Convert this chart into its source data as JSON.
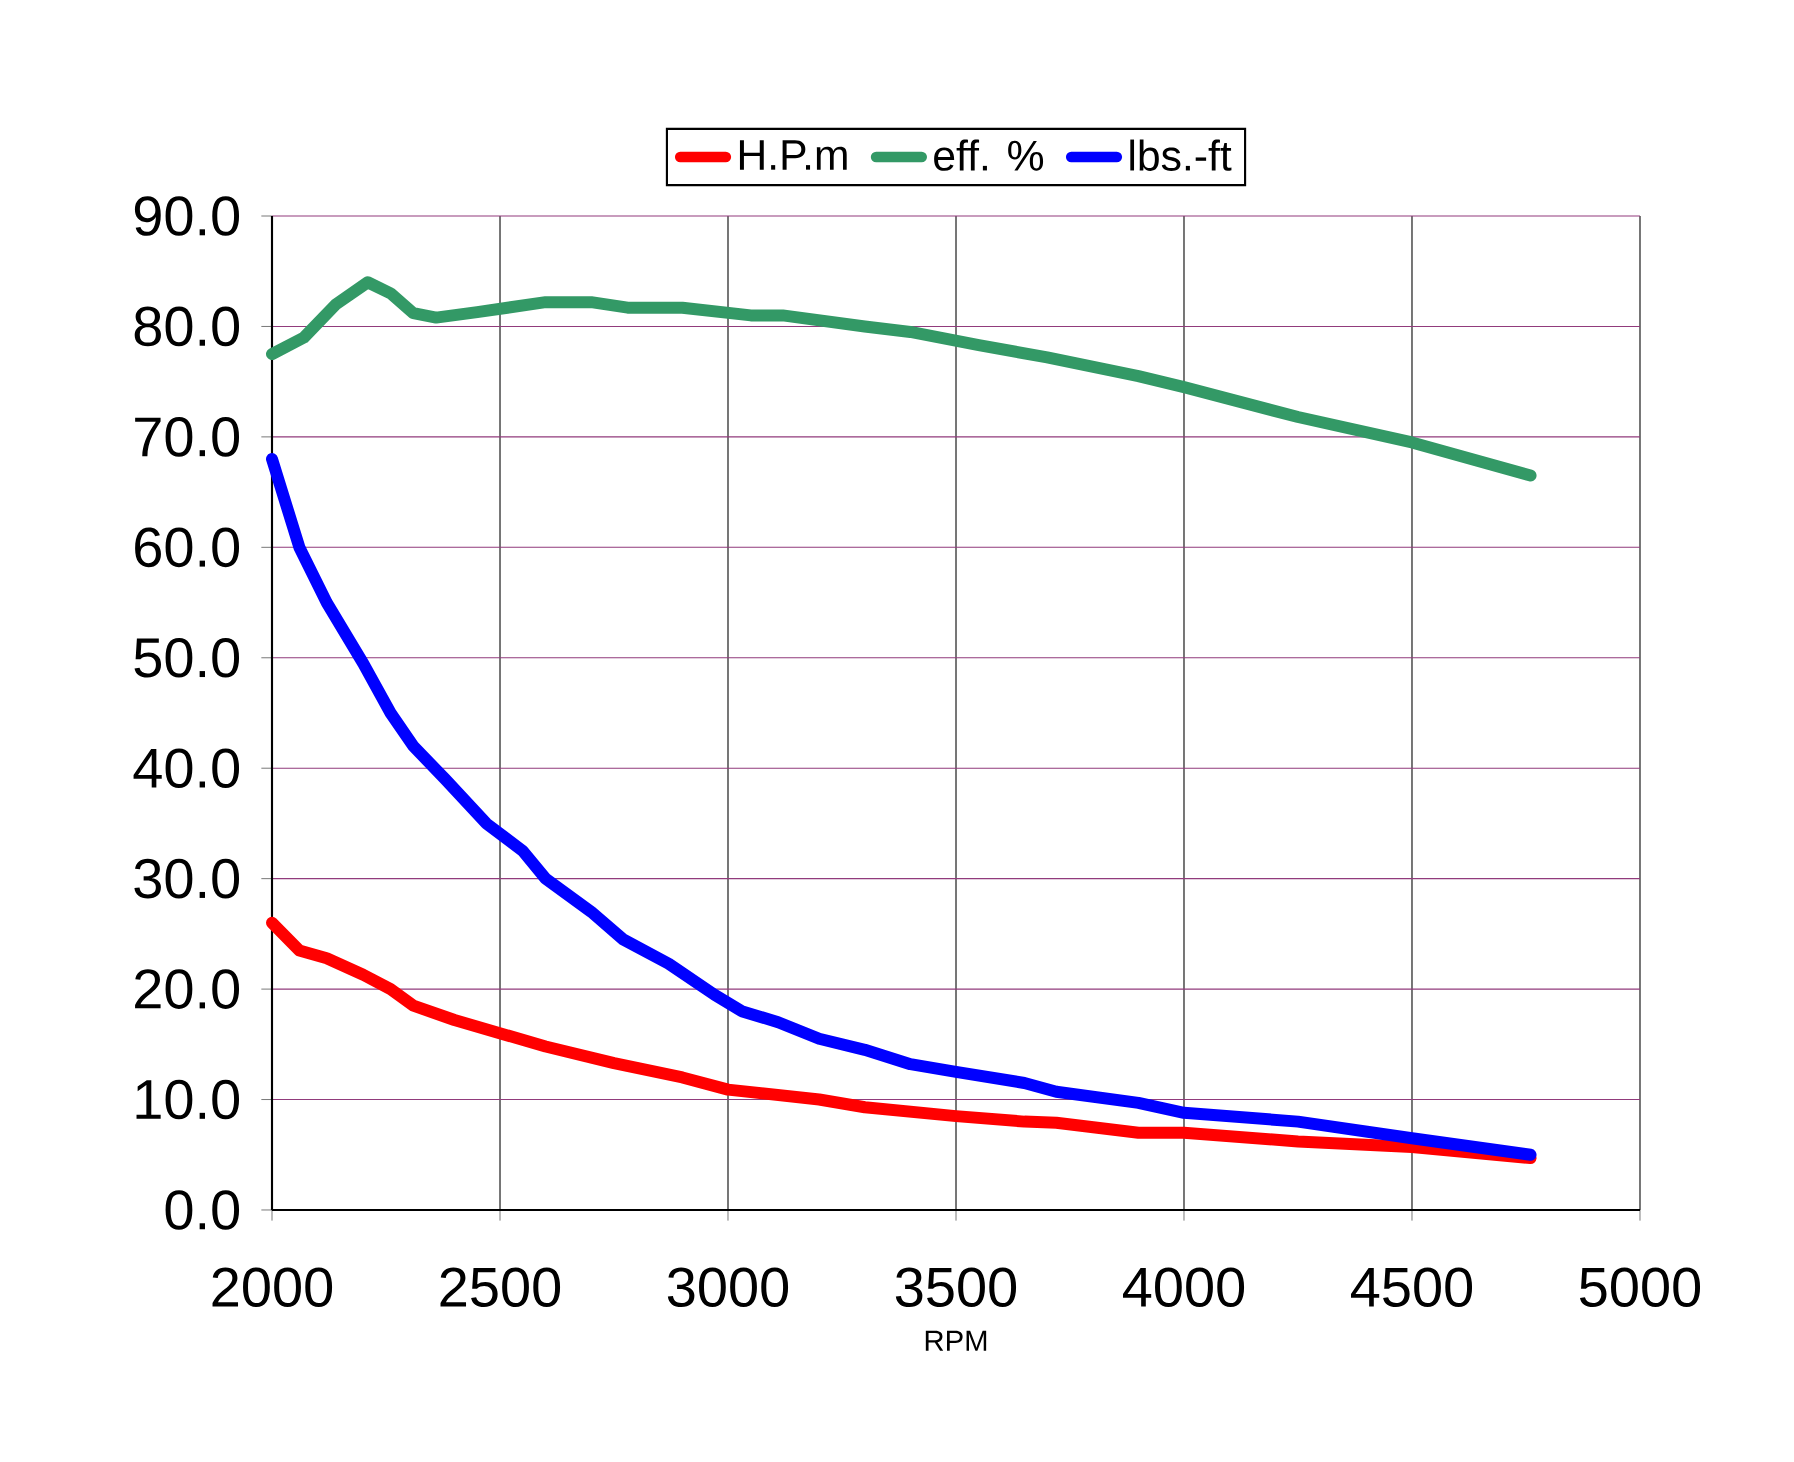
{
  "chart_data": {
    "type": "line",
    "xlabel": "RPM",
    "xlim": [
      2000,
      5000
    ],
    "xticks": [
      2000,
      2500,
      3000,
      3500,
      4000,
      4500,
      5000
    ],
    "ylim": [
      0,
      90
    ],
    "yticks": [
      {
        "value": 0,
        "label": "0.0"
      },
      {
        "value": 10,
        "label": "10.0"
      },
      {
        "value": 20,
        "label": "20.0"
      },
      {
        "value": 30,
        "label": "30.0"
      },
      {
        "value": 40,
        "label": "40.0"
      },
      {
        "value": 50,
        "label": "50.0"
      },
      {
        "value": 60,
        "label": "60.0"
      },
      {
        "value": 70,
        "label": "70.0"
      },
      {
        "value": 80,
        "label": "80.0"
      },
      {
        "value": 90,
        "label": "90.0"
      }
    ],
    "grid": true,
    "legend": "top",
    "marker": "none",
    "line_style": "solid",
    "series": [
      {
        "name": "H.P.m",
        "color": "#ff0000",
        "x": [
          2000,
          2060,
          2120,
          2200,
          2260,
          2310,
          2400,
          2500,
          2600,
          2750,
          2900,
          3000,
          3200,
          3300,
          3500,
          3650,
          3720,
          3900,
          4000,
          4250,
          4500,
          4760
        ],
        "values": [
          26,
          23.5,
          22.8,
          21.3,
          20,
          18.5,
          17.2,
          16,
          14.8,
          13.3,
          12,
          10.9,
          10,
          9.3,
          8.5,
          8,
          7.9,
          7,
          7,
          6.2,
          5.7,
          4.7
        ]
      },
      {
        "name": "eff. %",
        "color": "#339966",
        "x": [
          2000,
          2070,
          2140,
          2210,
          2260,
          2310,
          2360,
          2450,
          2600,
          2700,
          2780,
          2900,
          3050,
          3120,
          3300,
          3400,
          3550,
          3700,
          3900,
          4000,
          4250,
          4500,
          4760
        ],
        "values": [
          77.5,
          79,
          82,
          84,
          83,
          81.2,
          80.8,
          81.3,
          82.2,
          82.2,
          81.7,
          81.7,
          81,
          81,
          80,
          79.5,
          78.3,
          77.2,
          75.5,
          74.5,
          71.8,
          69.5,
          66.5
        ]
      },
      {
        "name": "lbs.-ft",
        "color": "#0000ff",
        "x": [
          2000,
          2060,
          2120,
          2200,
          2260,
          2310,
          2380,
          2470,
          2550,
          2600,
          2700,
          2770,
          2870,
          2970,
          3030,
          3110,
          3200,
          3300,
          3400,
          3500,
          3650,
          3720,
          3900,
          4000,
          4250,
          4500,
          4760
        ],
        "values": [
          68,
          60,
          55,
          49.5,
          45,
          42,
          39,
          35,
          32.5,
          30,
          27,
          24.5,
          22.3,
          19.5,
          18,
          17,
          15.5,
          14.5,
          13.2,
          12.5,
          11.5,
          10.7,
          9.7,
          8.8,
          8,
          6.5,
          5
        ]
      }
    ]
  }
}
